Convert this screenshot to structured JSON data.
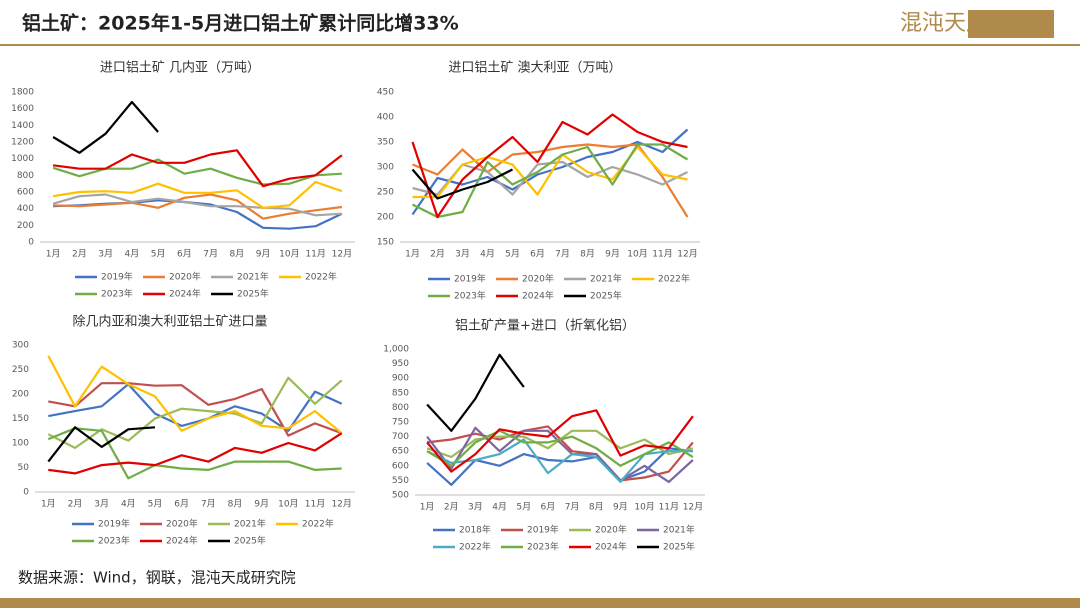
{
  "title": "铝土矿：2025年1-5月进口铝土矿累计同比增33%",
  "logo": "混沌天成研究院",
  "source": "数据来源：Wind，钢联，混沌天成研究院",
  "chart_data": [
    {
      "type": "line",
      "title": "进口铝土矿 几内亚（万吨）",
      "categories": [
        "1月",
        "2月",
        "3月",
        "4月",
        "5月",
        "6月",
        "7月",
        "8月",
        "9月",
        "10月",
        "11月",
        "12月"
      ],
      "ylim": [
        0,
        1800
      ],
      "yticks": [
        0,
        200,
        400,
        600,
        800,
        1000,
        1200,
        1400,
        1600,
        1800
      ],
      "grid": false,
      "series": [
        {
          "name": "2019年",
          "color": "#4472c4",
          "values": [
            430,
            440,
            460,
            470,
            500,
            480,
            450,
            360,
            170,
            160,
            190,
            340
          ]
        },
        {
          "name": "2020年",
          "color": "#ed7d31",
          "values": [
            440,
            430,
            450,
            470,
            410,
            530,
            570,
            500,
            280,
            340,
            380,
            420
          ]
        },
        {
          "name": "2021年",
          "color": "#a5a5a5",
          "values": [
            460,
            550,
            570,
            480,
            520,
            480,
            430,
            430,
            410,
            400,
            320,
            340
          ]
        },
        {
          "name": "2022年",
          "color": "#ffc000",
          "values": [
            550,
            600,
            610,
            590,
            700,
            590,
            590,
            620,
            410,
            440,
            720,
            610
          ]
        },
        {
          "name": "2023年",
          "color": "#70ad47",
          "values": [
            890,
            790,
            880,
            880,
            990,
            820,
            880,
            770,
            690,
            700,
            800,
            820
          ]
        },
        {
          "name": "2024年",
          "color": "#e00000",
          "values": [
            920,
            880,
            880,
            1050,
            950,
            950,
            1050,
            1100,
            670,
            760,
            800,
            1040
          ]
        },
        {
          "name": "2025年",
          "color": "#000000",
          "values": [
            1260,
            1070,
            1300,
            1680,
            1320,
            null,
            null,
            null,
            null,
            null,
            null,
            null
          ]
        }
      ]
    },
    {
      "type": "line",
      "title": "进口铝土矿 澳大利亚（万吨）",
      "categories": [
        "1月",
        "2月",
        "3月",
        "4月",
        "5月",
        "6月",
        "7月",
        "8月",
        "9月",
        "10月",
        "11月",
        "12月"
      ],
      "ylim": [
        150,
        450
      ],
      "yticks": [
        150,
        200,
        250,
        300,
        350,
        400,
        450
      ],
      "grid": false,
      "series": [
        {
          "name": "2019年",
          "color": "#4472c4",
          "values": [
            205,
            278,
            265,
            280,
            255,
            285,
            300,
            320,
            330,
            350,
            330,
            375
          ]
        },
        {
          "name": "2020年",
          "color": "#ed7d31",
          "values": [
            305,
            285,
            335,
            290,
            325,
            330,
            340,
            345,
            340,
            345,
            280,
            200
          ]
        },
        {
          "name": "2021年",
          "color": "#a5a5a5",
          "values": [
            258,
            245,
            305,
            290,
            245,
            305,
            310,
            280,
            300,
            285,
            265,
            290
          ]
        },
        {
          "name": "2022年",
          "color": "#ffc000",
          "values": [
            240,
            240,
            305,
            320,
            305,
            245,
            325,
            290,
            275,
            340,
            285,
            275
          ]
        },
        {
          "name": "2023年",
          "color": "#70ad47",
          "values": [
            225,
            200,
            210,
            310,
            265,
            290,
            325,
            340,
            265,
            345,
            345,
            315
          ]
        },
        {
          "name": "2024年",
          "color": "#e00000",
          "values": [
            350,
            200,
            275,
            320,
            360,
            310,
            390,
            365,
            405,
            370,
            350,
            340
          ]
        },
        {
          "name": "2025年",
          "color": "#000000",
          "values": [
            295,
            237,
            255,
            270,
            295,
            null,
            null,
            null,
            null,
            null,
            null,
            null
          ]
        }
      ]
    },
    {
      "type": "line",
      "title": "除几内亚和澳大利亚铝土矿进口量",
      "categories": [
        "1月",
        "2月",
        "3月",
        "4月",
        "5月",
        "6月",
        "7月",
        "8月",
        "9月",
        "10月",
        "11月",
        "12月"
      ],
      "ylim": [
        0,
        300
      ],
      "yticks": [
        0,
        50,
        100,
        150,
        200,
        250,
        300
      ],
      "grid": false,
      "series": [
        {
          "name": "2019年",
          "color": "#4472c4",
          "values": [
            155,
            165,
            175,
            220,
            160,
            135,
            150,
            175,
            160,
            125,
            205,
            180
          ]
        },
        {
          "name": "2020年",
          "color": "#c0504d",
          "values": [
            185,
            175,
            222,
            222,
            217,
            218,
            178,
            190,
            210,
            115,
            140,
            120
          ]
        },
        {
          "name": "2021年",
          "color": "#9bbb59",
          "values": [
            118,
            90,
            128,
            105,
            150,
            170,
            165,
            160,
            140,
            233,
            180,
            228
          ]
        },
        {
          "name": "2022年",
          "color": "#ffc000",
          "values": [
            278,
            175,
            256,
            220,
            195,
            125,
            150,
            165,
            135,
            130,
            165,
            120
          ]
        },
        {
          "name": "2023年",
          "color": "#70ad47",
          "values": [
            108,
            130,
            125,
            28,
            55,
            48,
            45,
            62,
            62,
            62,
            45,
            48
          ]
        },
        {
          "name": "2024年",
          "color": "#e00000",
          "values": [
            45,
            38,
            55,
            60,
            55,
            75,
            62,
            90,
            80,
            100,
            85,
            120
          ]
        },
        {
          "name": "2025年",
          "color": "#000000",
          "values": [
            62,
            132,
            92,
            128,
            132,
            null,
            null,
            null,
            null,
            null,
            null,
            null
          ]
        }
      ]
    },
    {
      "type": "line",
      "title": "铝土矿产量+进口（折氧化铝）",
      "categories": [
        "1月",
        "2月",
        "3月",
        "4月",
        "5月",
        "6月",
        "7月",
        "8月",
        "9月",
        "10月",
        "11月",
        "12月"
      ],
      "ylim": [
        500,
        1000
      ],
      "yticks": [
        500,
        550,
        600,
        650,
        700,
        750,
        800,
        850,
        900,
        950,
        {
          "value": 1000,
          "label": "1,000"
        }
      ],
      "grid": false,
      "series": [
        {
          "name": "2018年",
          "color": "#4472c4",
          "values": [
            610,
            535,
            620,
            600,
            640,
            620,
            615,
            630,
            550,
            580,
            660,
            650
          ]
        },
        {
          "name": "2019年",
          "color": "#c0504d",
          "values": [
            680,
            690,
            710,
            690,
            720,
            735,
            650,
            640,
            550,
            560,
            580,
            680
          ]
        },
        {
          "name": "2020年",
          "color": "#9bbb59",
          "values": [
            660,
            630,
            690,
            700,
            700,
            660,
            720,
            720,
            660,
            690,
            640,
            660
          ]
        },
        {
          "name": "2021年",
          "color": "#8064a2",
          "values": [
            700,
            590,
            730,
            650,
            720,
            720,
            640,
            640,
            550,
            600,
            545,
            620
          ]
        },
        {
          "name": "2022年",
          "color": "#4bacc6",
          "values": [
            650,
            610,
            620,
            640,
            690,
            575,
            640,
            630,
            545,
            640,
            650,
            650
          ]
        },
        {
          "name": "2023年",
          "color": "#70ad47",
          "values": [
            650,
            600,
            680,
            720,
            680,
            680,
            700,
            660,
            600,
            640,
            680,
            630
          ]
        },
        {
          "name": "2024年",
          "color": "#e00000",
          "values": [
            680,
            580,
            640,
            725,
            710,
            700,
            770,
            790,
            635,
            670,
            660,
            770
          ]
        },
        {
          "name": "2025年",
          "color": "#000000",
          "values": [
            810,
            720,
            830,
            980,
            870,
            null,
            null,
            null,
            null,
            null,
            null,
            null
          ]
        }
      ]
    }
  ]
}
